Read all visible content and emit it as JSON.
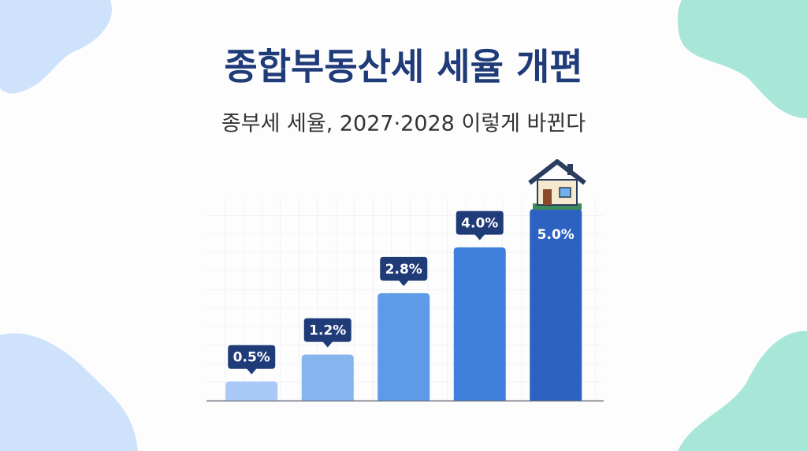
{
  "chart_data": {
    "type": "bar",
    "title": "종합부동산세 세율 개편",
    "subtitle": "종부세 세율, 2027·2028 이렇게 바뀐다",
    "categories": [
      null,
      null,
      null,
      null,
      null
    ],
    "values": [
      0.5,
      1.2,
      2.8,
      4.0,
      5.0
    ],
    "value_labels": [
      "0.5%",
      "1.2%",
      "2.8%",
      "4.0%",
      "5.0%"
    ],
    "colors": [
      "#a9c9f6",
      "#86b4ef",
      "#5d9ae7",
      "#3f80dc",
      "#2d62c2"
    ]
  }
}
